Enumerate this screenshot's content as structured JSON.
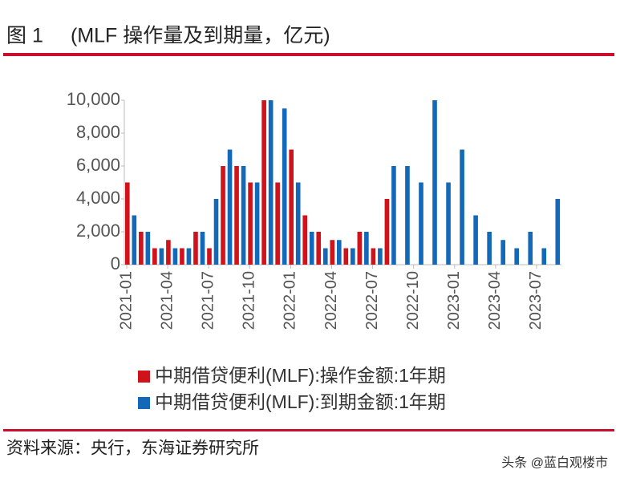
{
  "figure_label": "图 1",
  "source": "资料来源：央行，东海证券研究所",
  "watermark": "头条 @蓝白观楼市",
  "chart_data": {
    "type": "bar",
    "title": "(MLF 操作量及到期量，亿元)",
    "categories": [
      "2021-01",
      null,
      null,
      "2021-04",
      null,
      null,
      "2021-07",
      null,
      null,
      "2021-10",
      null,
      null,
      "2022-01",
      null,
      null,
      "2022-04",
      null,
      null,
      "2022-07",
      null,
      null,
      "2022-10",
      null,
      null,
      "2023-01",
      null,
      null,
      "2023-04",
      null,
      null,
      "2023-07",
      null
    ],
    "series": [
      {
        "name": "中期借贷便利(MLF):操作金额:1年期",
        "color": "#d0121b",
        "values": [
          5000,
          2000,
          1000,
          1500,
          1000,
          2000,
          1000,
          6000,
          6000,
          5000,
          10000,
          5000,
          7000,
          3000,
          2000,
          1500,
          1000,
          2000,
          1000,
          4000,
          null,
          null,
          null,
          null,
          null,
          null,
          null,
          null,
          null,
          null,
          null,
          null
        ]
      },
      {
        "name": "中期借贷便利(MLF):到期金额:1年期",
        "color": "#1468b8",
        "values": [
          3000,
          2000,
          1000,
          1000,
          1000,
          2000,
          4000,
          7000,
          6000,
          5000,
          10000,
          9500,
          5000,
          2000,
          1000,
          1500,
          1000,
          2000,
          1000,
          6000,
          6000,
          5000,
          10000,
          5000,
          7000,
          3000,
          2000,
          1500,
          1000,
          2000,
          1000,
          4000
        ]
      }
    ],
    "ylim": [
      0,
      10000
    ],
    "yticks": [
      0,
      {
        "value": 2000,
        "label": "2,000"
      },
      {
        "value": 4000,
        "label": "4,000"
      },
      {
        "value": 6000,
        "label": "6,000"
      },
      {
        "value": 8000,
        "label": "8,000"
      },
      {
        "value": 10000,
        "label": "10,000"
      }
    ],
    "grid": false
  }
}
